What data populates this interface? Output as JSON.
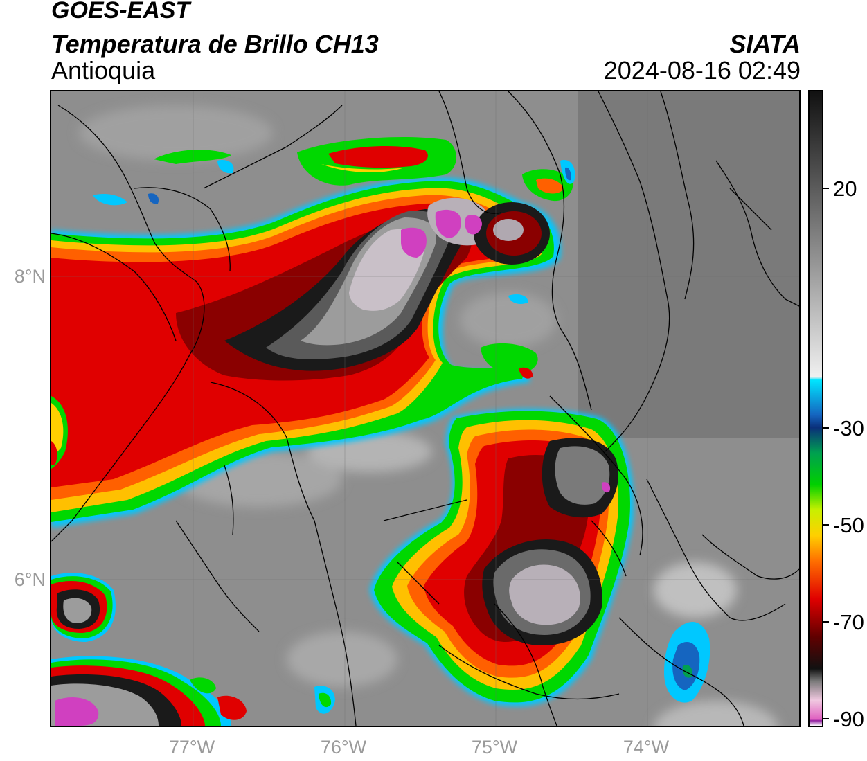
{
  "header": {
    "satellite": "GOES-EAST",
    "product": "Temperatura de Brillo CH13",
    "region": "Antioquia",
    "organization": "SIATA",
    "timestamp": "2024-08-16 02:49"
  },
  "axes": {
    "lat_labels": [
      "8°N",
      "6°N"
    ],
    "lon_labels": [
      "77°W",
      "76°W",
      "75°W",
      "74°W"
    ]
  },
  "colorbar": {
    "tick_labels": [
      "20",
      "-30",
      "-50",
      "-70",
      "-90"
    ],
    "stops": [
      "#111111",
      "#555555",
      "#9a9a9a",
      "#f0f0f0",
      "#00e5ff",
      "#1565c0",
      "#0a2f7a",
      "#00a050",
      "#00d000",
      "#c8f000",
      "#ffd000",
      "#ff7000",
      "#e00000",
      "#600000",
      "#111111",
      "#7a7a7a",
      "#f0c8e0",
      "#e060c0",
      "#9020a0",
      "#ffffff"
    ]
  },
  "colors": {
    "cloud_cold": "#e00000",
    "cloud_deep": "#1a1a1a",
    "overshoot": "#d040c0",
    "edge_warm": "#00d000",
    "background": "#8c8c8c"
  }
}
